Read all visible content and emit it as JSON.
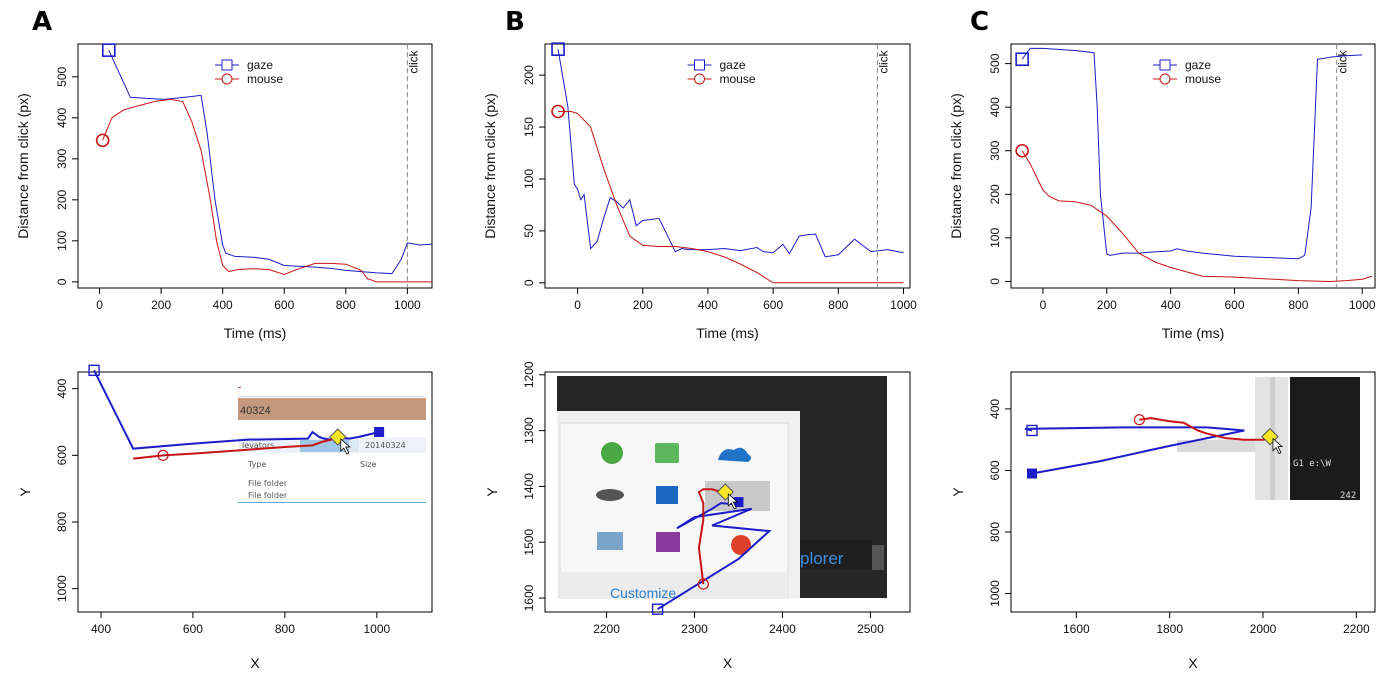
{
  "panels": [
    {
      "letter": "A"
    },
    {
      "letter": "B"
    },
    {
      "letter": "C"
    }
  ],
  "ui_fragments": {
    "A": {
      "cell_value": "40324",
      "breadcrumb": "levators",
      "breadcrumb_date": "20140324",
      "col_type": "Type",
      "col_size": "Size",
      "row1": "File folder",
      "row2": "File folder"
    },
    "B": {
      "explorer_text": "plorer",
      "customize_text": "Customize"
    },
    "C": {
      "terminal_line": "G1   e:\\W",
      "terminal_line2": "242"
    }
  },
  "colors": {
    "gaze": "#1c1cc8",
    "mouse": "#c81414",
    "click": "#888888"
  },
  "chart_data": [
    {
      "type": "line",
      "panel": "A",
      "xlabel": "Time (ms)",
      "ylabel": "Distance from click (px)",
      "xlim": [
        -70,
        1080
      ],
      "ylim": [
        -15,
        580
      ],
      "xticks": [
        0,
        200,
        400,
        600,
        800,
        1000
      ],
      "yticks": [
        0,
        100,
        200,
        300,
        400,
        500
      ],
      "legend": [
        "gaze",
        "mouse"
      ],
      "legend_position": "top-center",
      "click_label": "click",
      "click_time": 1000,
      "series": [
        {
          "name": "gaze",
          "x": [
            30,
            100,
            160,
            210,
            250,
            300,
            330,
            350,
            375,
            400,
            410,
            440,
            500,
            550,
            600,
            650,
            700,
            750,
            800,
            850,
            900,
            950,
            980,
            1000,
            1040,
            1080
          ],
          "y": [
            565,
            450,
            447,
            445,
            448,
            452,
            455,
            360,
            200,
            90,
            70,
            62,
            60,
            55,
            40,
            38,
            36,
            33,
            28,
            25,
            22,
            20,
            55,
            95,
            90,
            92
          ]
        },
        {
          "name": "mouse",
          "x": [
            10,
            40,
            80,
            130,
            180,
            230,
            270,
            300,
            330,
            360,
            380,
            400,
            420,
            450,
            500,
            550,
            600,
            640,
            700,
            750,
            800,
            850,
            870,
            900,
            950,
            1000,
            1080
          ],
          "y": [
            345,
            400,
            420,
            430,
            440,
            445,
            440,
            390,
            320,
            200,
            100,
            40,
            25,
            30,
            32,
            30,
            18,
            30,
            45,
            45,
            43,
            28,
            8,
            0,
            0,
            0,
            0
          ]
        }
      ],
      "markers": [
        {
          "series": "gaze",
          "x": 30,
          "y": 565
        },
        {
          "series": "mouse",
          "x": 10,
          "y": 345
        }
      ]
    },
    {
      "type": "line",
      "panel": "B",
      "xlabel": "Time (ms)",
      "ylabel": "Distance from click (px)",
      "xlim": [
        -100,
        1020
      ],
      "ylim": [
        -5,
        230
      ],
      "xticks": [
        0,
        200,
        400,
        600,
        800,
        1000
      ],
      "yticks": [
        0,
        50,
        100,
        150,
        200
      ],
      "legend": [
        "gaze",
        "mouse"
      ],
      "legend_position": "top-center",
      "click_label": "click",
      "click_time": 920,
      "series": [
        {
          "name": "gaze",
          "x": [
            -60,
            -30,
            -10,
            0,
            10,
            20,
            40,
            60,
            80,
            100,
            120,
            140,
            160,
            180,
            200,
            250,
            300,
            320,
            340,
            400,
            450,
            500,
            550,
            570,
            600,
            630,
            650,
            680,
            700,
            730,
            760,
            800,
            850,
            900,
            950,
            1000
          ],
          "y": [
            225,
            170,
            95,
            90,
            80,
            85,
            33,
            40,
            62,
            82,
            78,
            72,
            80,
            55,
            60,
            62,
            30,
            33,
            32,
            32,
            33,
            31,
            34,
            30,
            29,
            37,
            28,
            45,
            46,
            47,
            25,
            27,
            42,
            30,
            32,
            29
          ]
        },
        {
          "name": "mouse",
          "x": [
            -60,
            -20,
            0,
            40,
            80,
            120,
            160,
            200,
            250,
            300,
            350,
            400,
            450,
            500,
            550,
            600,
            700,
            800,
            900,
            1000
          ],
          "y": [
            165,
            165,
            163,
            150,
            110,
            75,
            45,
            36,
            35,
            35,
            33,
            30,
            25,
            18,
            10,
            0,
            0,
            0,
            0,
            0
          ]
        }
      ],
      "markers": [
        {
          "series": "gaze",
          "x": -60,
          "y": 225
        },
        {
          "series": "mouse",
          "x": -60,
          "y": 165
        }
      ]
    },
    {
      "type": "line",
      "panel": "C",
      "xlabel": "Time (ms)",
      "ylabel": "Distance from click (px)",
      "xlim": [
        -100,
        1040
      ],
      "ylim": [
        -15,
        545
      ],
      "xticks": [
        0,
        200,
        400,
        600,
        800,
        1000
      ],
      "yticks": [
        0,
        100,
        200,
        300,
        400,
        500
      ],
      "legend": [
        "gaze",
        "mouse"
      ],
      "legend_position": "top-center",
      "click_label": "click",
      "click_time": 920,
      "series": [
        {
          "name": "gaze",
          "x": [
            -65,
            -40,
            0,
            100,
            160,
            170,
            180,
            200,
            210,
            250,
            300,
            350,
            400,
            420,
            450,
            500,
            600,
            700,
            800,
            820,
            840,
            860,
            880,
            900,
            950,
            1000
          ],
          "y": [
            510,
            535,
            535,
            530,
            525,
            400,
            200,
            63,
            60,
            65,
            65,
            68,
            70,
            75,
            70,
            65,
            58,
            55,
            52,
            60,
            170,
            510,
            512,
            515,
            518,
            520
          ]
        },
        {
          "name": "mouse",
          "x": [
            -65,
            -40,
            -20,
            0,
            20,
            50,
            100,
            150,
            200,
            250,
            300,
            350,
            400,
            450,
            500,
            600,
            700,
            800,
            900,
            950,
            1000,
            1030
          ],
          "y": [
            300,
            270,
            240,
            210,
            195,
            185,
            183,
            175,
            150,
            110,
            65,
            45,
            32,
            22,
            12,
            10,
            6,
            2,
            0,
            2,
            5,
            12
          ]
        }
      ],
      "markers": [
        {
          "series": "gaze",
          "x": -65,
          "y": 510
        },
        {
          "series": "mouse",
          "x": -65,
          "y": 300
        }
      ]
    },
    {
      "type": "scatter",
      "panel": "A",
      "xlabel": "X",
      "ylabel": "Y",
      "xlim": [
        350,
        1120
      ],
      "ylim": [
        1070,
        350
      ],
      "xticks": [
        400,
        600,
        800,
        1000
      ],
      "yticks": [
        400,
        600,
        800,
        1000
      ],
      "series": [
        {
          "name": "gaze",
          "x": [
            385,
            470,
            600,
            720,
            850,
            860,
            875,
            885,
            900,
            920,
            940,
            960,
            1005
          ],
          "y": [
            345,
            580,
            565,
            553,
            550,
            530,
            545,
            550,
            553,
            548,
            550,
            545,
            530
          ]
        },
        {
          "name": "mouse",
          "x": [
            470,
            535,
            600,
            700,
            800,
            860,
            880,
            900,
            915
          ],
          "y": [
            610,
            600,
            595,
            585,
            575,
            570,
            560,
            553,
            550
          ]
        }
      ],
      "start_gaze": [
        385,
        345
      ],
      "end_gaze": [
        1005,
        530
      ],
      "start_mouse": [
        535,
        600
      ],
      "click_point": [
        915,
        545
      ]
    },
    {
      "type": "scatter",
      "panel": "B",
      "xlabel": "X",
      "ylabel": "Y",
      "xlim": [
        2130,
        2545
      ],
      "ylim": [
        1625,
        1195
      ],
      "xticks": [
        2200,
        2300,
        2400,
        2500
      ],
      "yticks": [
        1200,
        1300,
        1400,
        1500,
        1600
      ],
      "series": [
        {
          "name": "gaze",
          "x": [
            2258,
            2350,
            2385,
            2320,
            2365,
            2300,
            2280,
            2320,
            2330,
            2345,
            2350
          ],
          "y": [
            1620,
            1530,
            1480,
            1470,
            1440,
            1455,
            1475,
            1440,
            1430,
            1432,
            1428
          ]
        },
        {
          "name": "mouse",
          "x": [
            2310,
            2305,
            2310,
            2310,
            2305,
            2310,
            2320,
            2330,
            2335
          ],
          "y": [
            1575,
            1510,
            1460,
            1430,
            1410,
            1405,
            1405,
            1410,
            1410
          ]
        }
      ],
      "start_gaze": [
        2258,
        1620
      ],
      "end_gaze": [
        2350,
        1428
      ],
      "start_mouse": [
        2310,
        1575
      ],
      "click_point": [
        2335,
        1410
      ]
    },
    {
      "type": "scatter",
      "panel": "C",
      "xlabel": "X",
      "ylabel": "Y",
      "xlim": [
        1460,
        2240
      ],
      "ylim": [
        1060,
        280
      ],
      "xticks": [
        1600,
        1800,
        2000,
        2200
      ],
      "yticks": [
        400,
        600,
        800,
        1000
      ],
      "series": [
        {
          "name": "gaze",
          "x": [
            1505,
            1490,
            1700,
            1880,
            1960,
            1800,
            1650,
            1505
          ],
          "y": [
            470,
            465,
            460,
            460,
            470,
            520,
            570,
            610
          ]
        },
        {
          "name": "mouse",
          "x": [
            1735,
            1760,
            1800,
            1830,
            1860,
            1880,
            1920,
            1960,
            2000,
            2015
          ],
          "y": [
            435,
            430,
            440,
            445,
            470,
            480,
            495,
            500,
            500,
            495
          ]
        }
      ],
      "start_gaze": [
        1505,
        470
      ],
      "end_gaze": [
        1505,
        610
      ],
      "start_mouse": [
        1735,
        435
      ],
      "click_point": [
        2015,
        490
      ]
    }
  ]
}
